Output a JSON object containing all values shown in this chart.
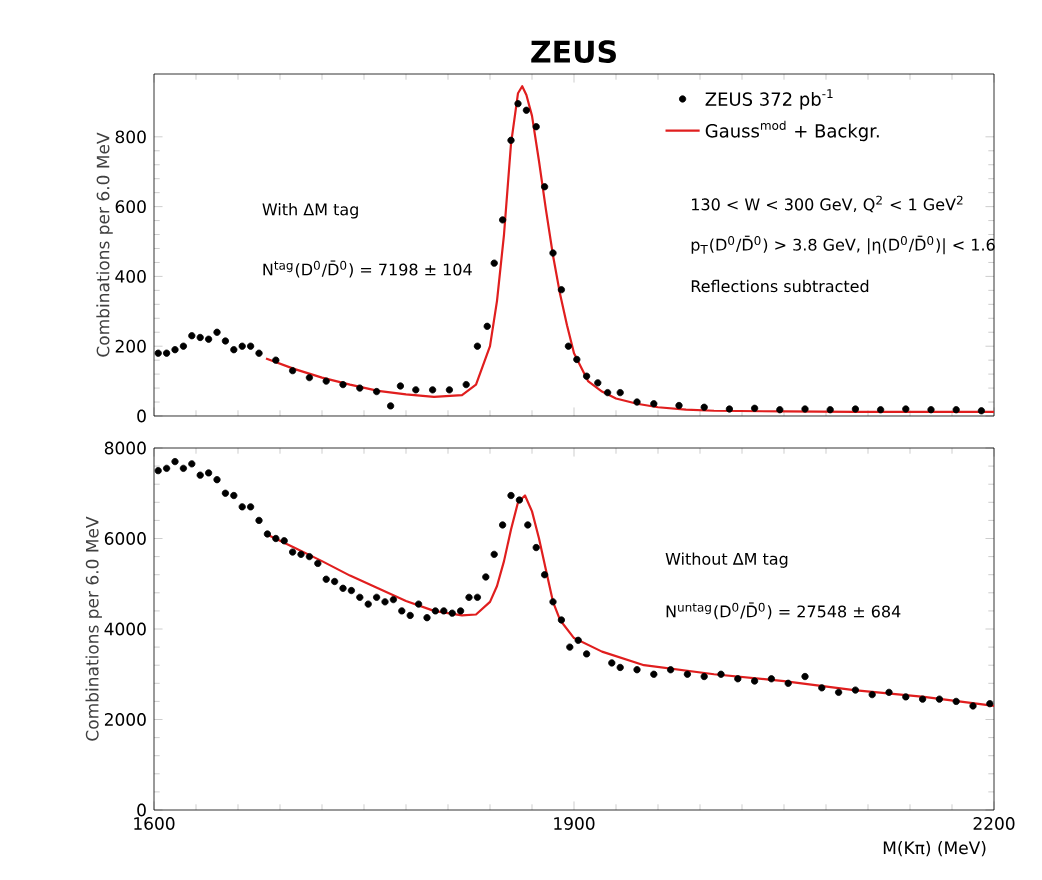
{
  "chart_data": [
    {
      "type": "scatter",
      "title": "ZEUS",
      "ylabel": "Combinations per  6.0 MeV",
      "xlim": [
        1600,
        2200
      ],
      "xticks": [
        1600,
        1900,
        2200
      ],
      "ylim": [
        0,
        980
      ],
      "yticks": [
        0,
        200,
        400,
        600,
        800
      ],
      "tick_labels": "y",
      "legend": "top right",
      "marker": "circle",
      "annotations": [
        "With ΔM tag",
        "N$^{tag}$(D$^{0}$/D̄$^{0}$) = 7198 ± 104",
        "130 < W < 300 GeV, Q$^{2}$ < 1 GeV$^{2}$",
        "p$_{T}$(D$^{0}$/D̄$^{0}$) > 3.8 GeV, |η(D$^{0}$/D̄$^{0}$)| < 1.6",
        "Reflections subtracted"
      ],
      "series": [
        {
          "name": "ZEUS  372 pb$^{-1}$",
          "type": "scatter",
          "color": "#000000",
          "x": [
            1603,
            1609,
            1615,
            1621,
            1627,
            1633,
            1639,
            1645,
            1651,
            1657,
            1663,
            1669,
            1675,
            1687,
            1699,
            1711,
            1723,
            1735,
            1747,
            1759,
            1769,
            1776,
            1787,
            1799,
            1811,
            1823,
            1831,
            1838,
            1843,
            1849,
            1855,
            1860,
            1866,
            1873,
            1879,
            1885,
            1891,
            1896,
            1902,
            1909,
            1917,
            1924,
            1933,
            1945,
            1957,
            1975,
            1993,
            2011,
            2029,
            2047,
            2065,
            2083,
            2101,
            2119,
            2137,
            2155,
            2173,
            2191
          ],
          "values": [
            180,
            180,
            190,
            200,
            230,
            225,
            220,
            240,
            215,
            190,
            200,
            200,
            180,
            160,
            130,
            110,
            100,
            90,
            80,
            70,
            29,
            86,
            75,
            75,
            75,
            90,
            200,
            257,
            438,
            562,
            790,
            895,
            876,
            829,
            657,
            467,
            362,
            200,
            162,
            114,
            95,
            67,
            67,
            40,
            35,
            30,
            25,
            20,
            22,
            18,
            20,
            18,
            20,
            18,
            20,
            18,
            18,
            15
          ]
        },
        {
          "name": "Gauss$^{mod}$ + Backgr.",
          "type": "line",
          "marker": "none",
          "color": "#e01e1e",
          "x": [
            1680,
            1700,
            1720,
            1740,
            1760,
            1780,
            1800,
            1820,
            1830,
            1840,
            1845,
            1850,
            1855,
            1860,
            1863,
            1866,
            1870,
            1875,
            1880,
            1885,
            1890,
            1895,
            1900,
            1910,
            1920,
            1930,
            1945,
            1960,
            1980,
            2000,
            2050,
            2100,
            2150,
            2200
          ],
          "values": [
            165,
            135,
            110,
            90,
            72,
            62,
            55,
            60,
            90,
            200,
            330,
            520,
            780,
            925,
            945,
            920,
            860,
            730,
            590,
            460,
            350,
            260,
            180,
            100,
            70,
            50,
            35,
            25,
            18,
            15,
            13,
            12,
            12,
            12
          ]
        }
      ]
    },
    {
      "type": "scatter",
      "xlabel": "M(Kπ)  (MeV)",
      "ylabel": "Combinations per  6.0 MeV",
      "xlim": [
        1600,
        2200
      ],
      "xticks": [
        1600,
        1900,
        2200
      ],
      "ylim": [
        0,
        8000
      ],
      "yticks": [
        0,
        2000,
        4000,
        6000,
        8000
      ],
      "legend": false,
      "marker": "circle",
      "annotations": [
        "Without ΔM tag",
        "N$^{untag}$(D$^{0}$/D̄$^{0}$) = 27548 ± 684"
      ],
      "series": [
        {
          "type": "scatter",
          "color": "#000000",
          "x": [
            1603,
            1609,
            1615,
            1621,
            1627,
            1633,
            1639,
            1645,
            1651,
            1657,
            1663,
            1669,
            1675,
            1681,
            1687,
            1693,
            1699,
            1705,
            1711,
            1717,
            1723,
            1729,
            1735,
            1741,
            1747,
            1753,
            1759,
            1765,
            1771,
            1777,
            1783,
            1789,
            1795,
            1801,
            1807,
            1813,
            1819,
            1825,
            1831,
            1837,
            1843,
            1849,
            1855,
            1861,
            1867,
            1873,
            1879,
            1885,
            1891,
            1897,
            1903,
            1909,
            1927,
            1933,
            1945,
            1957,
            1969,
            1981,
            1993,
            2005,
            2017,
            2029,
            2041,
            2053,
            2065,
            2077,
            2089,
            2101,
            2113,
            2125,
            2137,
            2149,
            2161,
            2173,
            2185,
            2197
          ],
          "values": [
            7500,
            7550,
            7700,
            7550,
            7650,
            7400,
            7450,
            7300,
            7000,
            6950,
            6700,
            6700,
            6400,
            6100,
            6000,
            5950,
            5700,
            5650,
            5600,
            5450,
            5100,
            5050,
            4900,
            4850,
            4700,
            4550,
            4700,
            4600,
            4650,
            4400,
            4300,
            4550,
            4250,
            4400,
            4400,
            4350,
            4400,
            4700,
            4700,
            5150,
            5650,
            6300,
            6950,
            6850,
            6300,
            5800,
            5200,
            4600,
            4200,
            3600,
            3750,
            3450,
            3250,
            3150,
            3100,
            3000,
            3100,
            3000,
            2950,
            3000,
            2900,
            2850,
            2900,
            2800,
            2950,
            2700,
            2600,
            2650,
            2550,
            2600,
            2500,
            2450,
            2450,
            2400,
            2300,
            2350
          ]
        },
        {
          "type": "line",
          "marker": "none",
          "color": "#e01e1e",
          "x": [
            1680,
            1700,
            1720,
            1740,
            1760,
            1780,
            1800,
            1820,
            1830,
            1840,
            1845,
            1850,
            1855,
            1860,
            1865,
            1870,
            1875,
            1880,
            1885,
            1890,
            1900,
            1920,
            1950,
            2000,
            2050,
            2100,
            2150,
            2200
          ],
          "values": [
            6100,
            5800,
            5500,
            5180,
            4900,
            4620,
            4400,
            4300,
            4320,
            4600,
            4950,
            5500,
            6200,
            6800,
            6950,
            6600,
            6000,
            5300,
            4600,
            4200,
            3800,
            3500,
            3200,
            3000,
            2850,
            2650,
            2500,
            2300
          ]
        }
      ]
    }
  ]
}
